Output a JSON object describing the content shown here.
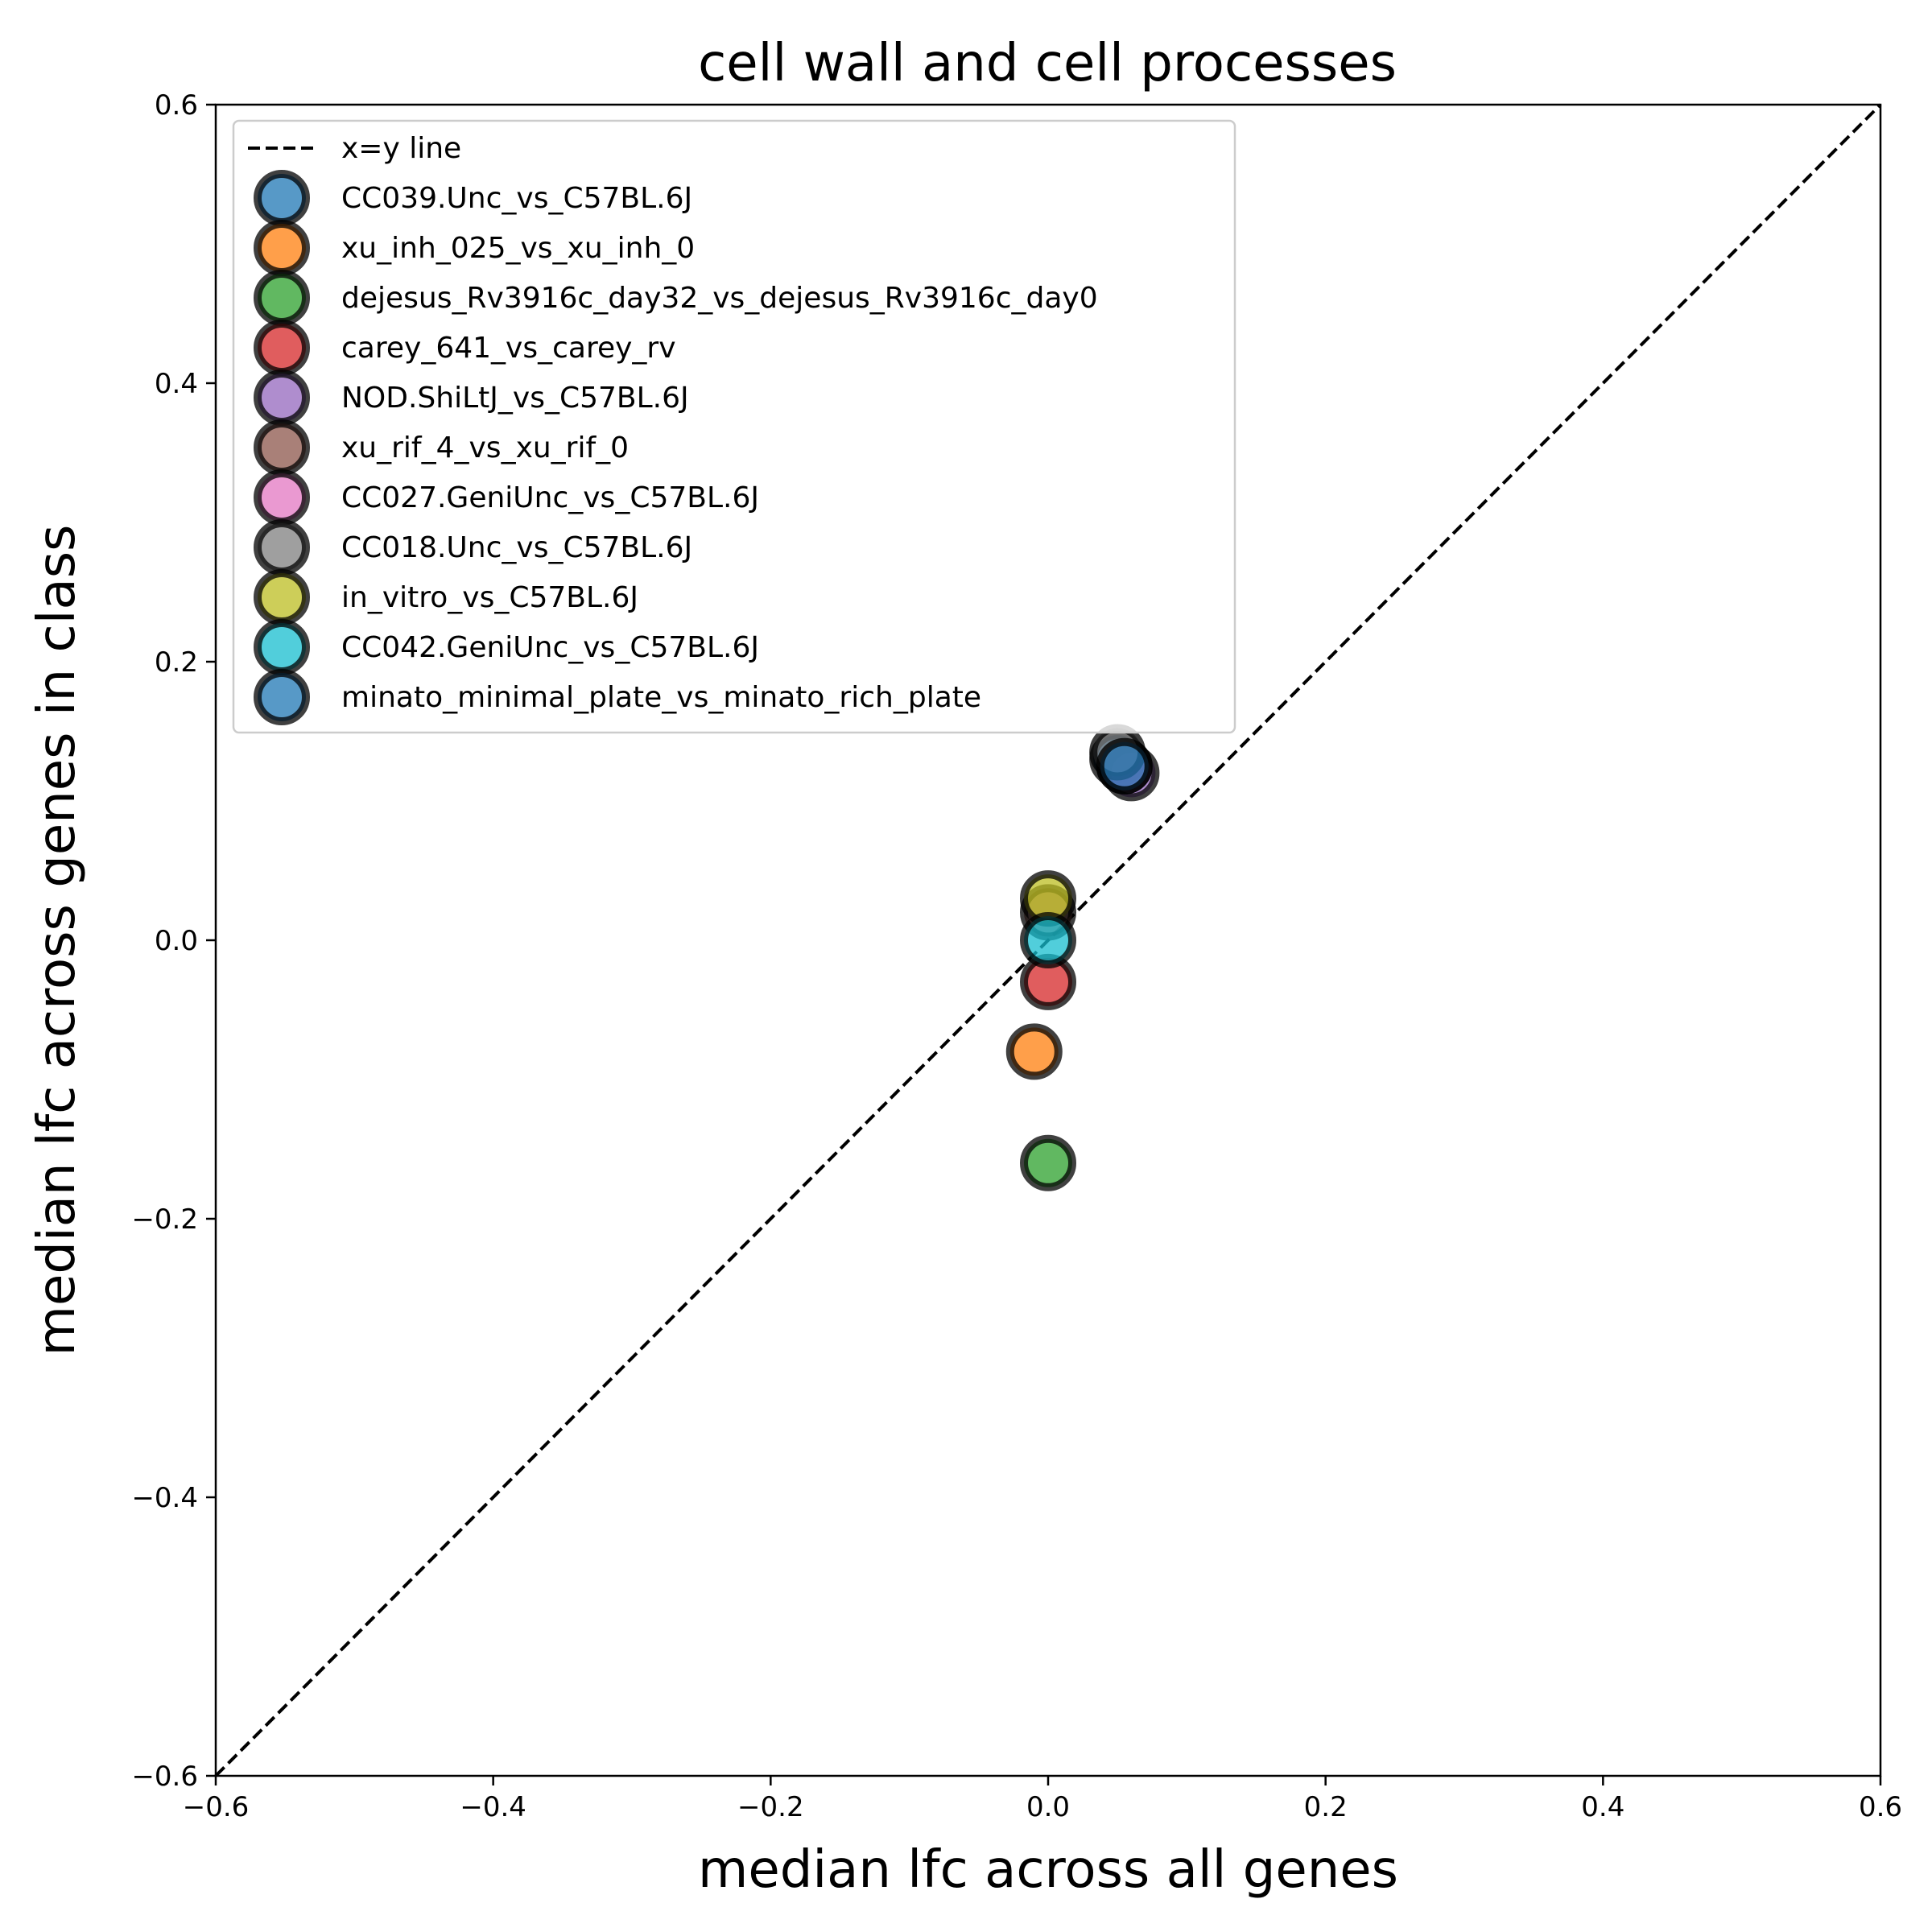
{
  "chart_data": {
    "type": "scatter",
    "title": "cell wall and cell processes",
    "xlabel": "median lfc across all genes",
    "ylabel": "median lfc across genes in class",
    "xlim": [
      -0.6,
      0.6
    ],
    "ylim": [
      -0.6,
      0.6
    ],
    "x_ticks": [
      -0.6,
      -0.4,
      -0.2,
      0.0,
      0.2,
      0.4,
      0.6
    ],
    "y_ticks": [
      -0.6,
      -0.4,
      -0.2,
      0.0,
      0.2,
      0.4,
      0.6
    ],
    "x_tick_labels": [
      "−0.6",
      "−0.4",
      "−0.2",
      "0.0",
      "0.2",
      "0.4",
      "0.6"
    ],
    "y_tick_labels": [
      "−0.6",
      "−0.4",
      "−0.2",
      "0.0",
      "0.2",
      "0.4",
      "0.6"
    ],
    "grid": false,
    "legend_position": "top-left",
    "reference_line": {
      "label": "x=y line",
      "style": "dashed",
      "color": "#000000",
      "from": [
        -0.6,
        -0.6
      ],
      "to": [
        0.6,
        0.6
      ]
    },
    "series": [
      {
        "name": "CC039.Unc_vs_C57BL.6J",
        "color": "#1f77b4",
        "x": 0.05,
        "y": 0.13
      },
      {
        "name": "xu_inh_025_vs_xu_inh_0",
        "color": "#ff7f0e",
        "x": -0.01,
        "y": -0.08
      },
      {
        "name": "dejesus_Rv3916c_day32_vs_dejesus_Rv3916c_day0",
        "color": "#2ca02c",
        "x": 0.0,
        "y": -0.16
      },
      {
        "name": "carey_641_vs_carey_rv",
        "color": "#d62728",
        "x": 0.0,
        "y": -0.03
      },
      {
        "name": "NOD.ShiLtJ_vs_C57BL.6J",
        "color": "#9467bd",
        "x": 0.06,
        "y": 0.12
      },
      {
        "name": "xu_rif_4_vs_xu_rif_0",
        "color": "#8c564b",
        "x": 0.0,
        "y": 0.02
      },
      {
        "name": "CC027.GeniUnc_vs_C57BL.6J",
        "color": "#e377c2",
        "x": 0.055,
        "y": 0.125
      },
      {
        "name": "CC018.Unc_vs_C57BL.6J",
        "color": "#7f7f7f",
        "x": 0.05,
        "y": 0.135
      },
      {
        "name": "in_vitro_vs_C57BL.6J",
        "color": "#bcbd22",
        "x": 0.0,
        "y": 0.03
      },
      {
        "name": "CC042.GeniUnc_vs_C57BL.6J",
        "color": "#17becf",
        "x": 0.0,
        "y": 0.0
      },
      {
        "name": "minato_minimal_plate_vs_minato_rich_plate",
        "color": "#1f77b4",
        "x": 0.055,
        "y": 0.125
      }
    ]
  }
}
